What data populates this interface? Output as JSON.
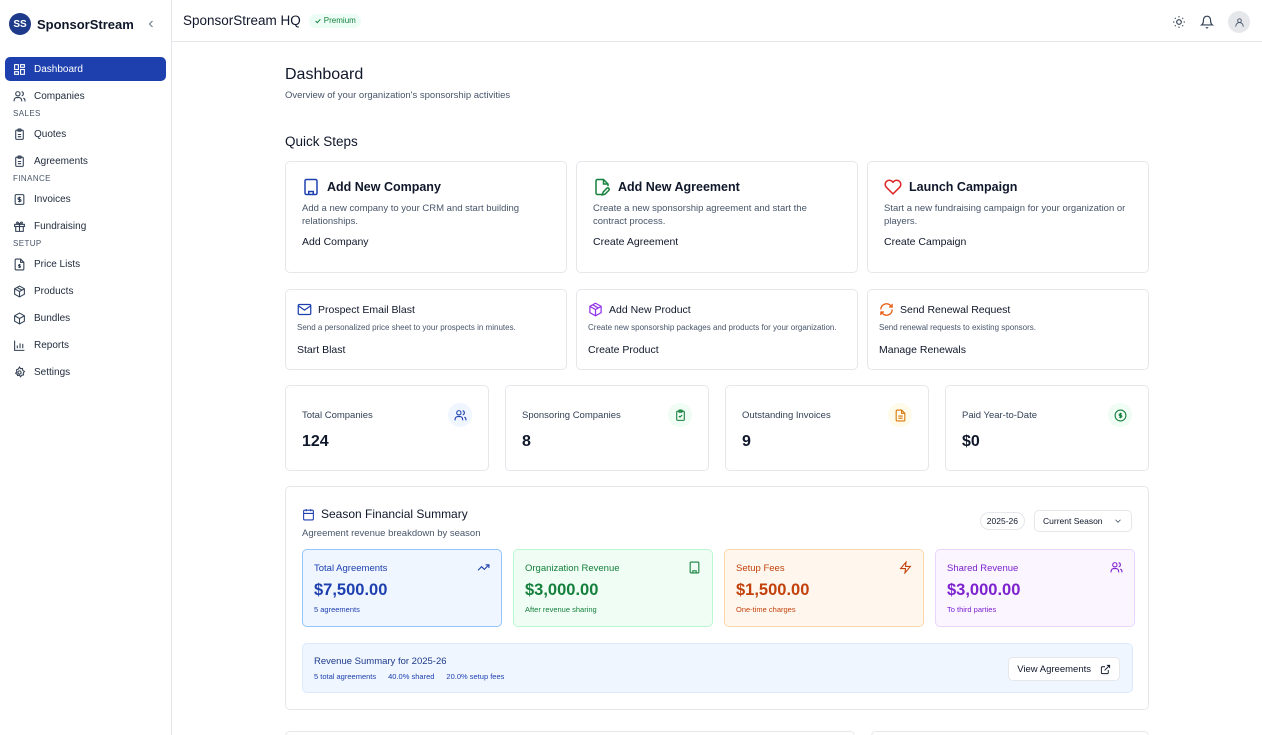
{
  "sidebar": {
    "logo_initials": "SS",
    "brand": "SponsorStream",
    "items": [
      {
        "label": "Dashboard",
        "icon": "dashboard-icon"
      },
      {
        "label": "Companies",
        "icon": "users-icon"
      },
      {
        "section": "SALES"
      },
      {
        "label": "Quotes",
        "icon": "clipboard-icon"
      },
      {
        "label": "Agreements",
        "icon": "clipboard-icon"
      },
      {
        "section": "FINANCE"
      },
      {
        "label": "Invoices",
        "icon": "dollar-doc-icon"
      },
      {
        "label": "Fundraising",
        "icon": "gift-icon"
      },
      {
        "section": "SETUP"
      },
      {
        "label": "Price Lists",
        "icon": "file-dollar-icon"
      },
      {
        "label": "Products",
        "icon": "boxes-icon"
      },
      {
        "label": "Bundles",
        "icon": "package-icon"
      },
      {
        "label": "Reports",
        "icon": "bar-chart-icon"
      },
      {
        "label": "Settings",
        "icon": "gear-icon"
      }
    ]
  },
  "header": {
    "org_name": "SponsorStream HQ",
    "badge": "Premium"
  },
  "page": {
    "title": "Dashboard",
    "subtitle": "Overview of your organization's sponsorship activities"
  },
  "quick_steps": {
    "title": "Quick Steps",
    "primary": [
      {
        "title": "Add New Company",
        "desc": "Add a new company to your CRM and start building relationships.",
        "action": "Add Company",
        "icon": "building-icon",
        "color": "#1e40af"
      },
      {
        "title": "Add New Agreement",
        "desc": "Create a new sponsorship agreement and start the contract process.",
        "action": "Create Agreement",
        "icon": "file-pen-icon",
        "color": "#15803d"
      },
      {
        "title": "Launch Campaign",
        "desc": "Start a new fundraising campaign for your organization or players.",
        "action": "Create Campaign",
        "icon": "heart-icon",
        "color": "#dc2626"
      }
    ],
    "secondary": [
      {
        "title": "Prospect Email Blast",
        "desc": "Send a personalized price sheet to your prospects in minutes.",
        "action": "Start Blast",
        "icon": "mail-icon",
        "color": "#1e40af"
      },
      {
        "title": "Add New Product",
        "desc": "Create new sponsorship packages and products for your organization.",
        "action": "Create Product",
        "icon": "package-icon",
        "color": "#9333ea"
      },
      {
        "title": "Send Renewal Request",
        "desc": "Send renewal requests to existing sponsors.",
        "action": "Manage Renewals",
        "icon": "refresh-icon",
        "color": "#ea580c"
      }
    ]
  },
  "stats": [
    {
      "label": "Total Companies",
      "value": "124",
      "icon": "users-icon",
      "color": "#1e40af",
      "bg": "#eff6ff"
    },
    {
      "label": "Sponsoring Companies",
      "value": "8",
      "icon": "clipboard-check-icon",
      "color": "#15803d",
      "bg": "#f0fdf4"
    },
    {
      "label": "Outstanding Invoices",
      "value": "9",
      "icon": "file-text-icon",
      "color": "#d97706",
      "bg": "#fffbeb"
    },
    {
      "label": "Paid Year-to-Date",
      "value": "$0",
      "icon": "dollar-circle-icon",
      "color": "#15803d",
      "bg": "#f0fdf4"
    }
  ],
  "summary": {
    "title": "Season Financial Summary",
    "subtitle": "Agreement revenue breakdown by season",
    "season_badge": "2025-26",
    "season_select": "Current Season",
    "cards": [
      {
        "label": "Total Agreements",
        "value": "$7,500.00",
        "note": "5 agreements",
        "icon": "trending-up-icon",
        "fg": "#1e40af",
        "bg": "#eff6ff",
        "border": "#93c5fd"
      },
      {
        "label": "Organization Revenue",
        "value": "$3,000.00",
        "note": "After revenue sharing",
        "icon": "building-icon",
        "fg": "#15803d",
        "bg": "#f0fdf4",
        "border": "#bbf7d0"
      },
      {
        "label": "Setup Fees",
        "value": "$1,500.00",
        "note": "One-time charges",
        "icon": "zap-icon",
        "fg": "#c2410c",
        "bg": "#fff7ed",
        "border": "#fed7aa"
      },
      {
        "label": "Shared Revenue",
        "value": "$3,000.00",
        "note": "To third parties",
        "icon": "users-icon",
        "fg": "#7e22ce",
        "bg": "#faf5ff",
        "border": "#e9d5ff"
      }
    ],
    "revenue": {
      "title": "Revenue Summary for 2025-26",
      "total": "5 total agreements",
      "shared": "40.0% shared",
      "setup": "20.0% setup fees",
      "button": "View Agreements"
    }
  }
}
